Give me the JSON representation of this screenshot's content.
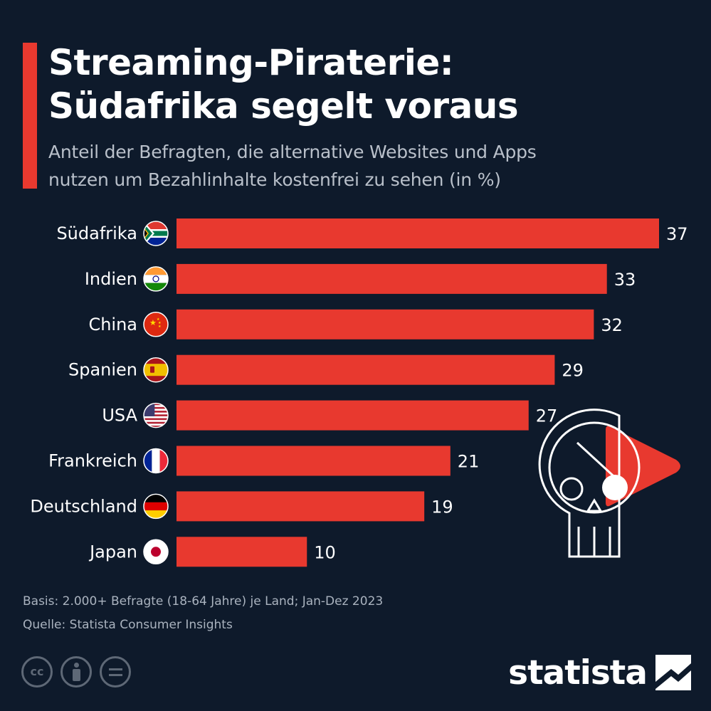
{
  "title_line1": "Streaming-Piraterie:",
  "title_line2": "Südafrika segelt voraus",
  "subtitle_line1": "Anteil der Befragten, die alternative Websites und Apps",
  "subtitle_line2": "nutzen um Bezahlinhalte kostenfrei zu sehen (in %)",
  "colors": {
    "background": "#0e1a2b",
    "bar": "#e8392f",
    "accent": "#e8392f"
  },
  "chart_data": {
    "type": "bar",
    "orientation": "horizontal",
    "categories": [
      "Südafrika",
      "Indien",
      "China",
      "Spanien",
      "USA",
      "Frankreich",
      "Deutschland",
      "Japan"
    ],
    "values": [
      37,
      33,
      32,
      29,
      27,
      21,
      19,
      10
    ],
    "flags": [
      "south-africa-flag-icon",
      "india-flag-icon",
      "china-flag-icon",
      "spain-flag-icon",
      "usa-flag-icon",
      "france-flag-icon",
      "germany-flag-icon",
      "japan-flag-icon"
    ],
    "xlim": [
      0,
      37
    ],
    "grid": false,
    "data_labels": true
  },
  "illustration": "pirate-skull-play-icon",
  "footer": {
    "basis": "Basis: 2.000+ Befragte (18-64 Jahre) je Land; Jan-Dez 2023",
    "source": "Quelle: Statista Consumer Insights",
    "license_icons": [
      "cc-icon",
      "by-icon",
      "nd-icon"
    ],
    "cc_text": "cc",
    "brand": "statista"
  }
}
